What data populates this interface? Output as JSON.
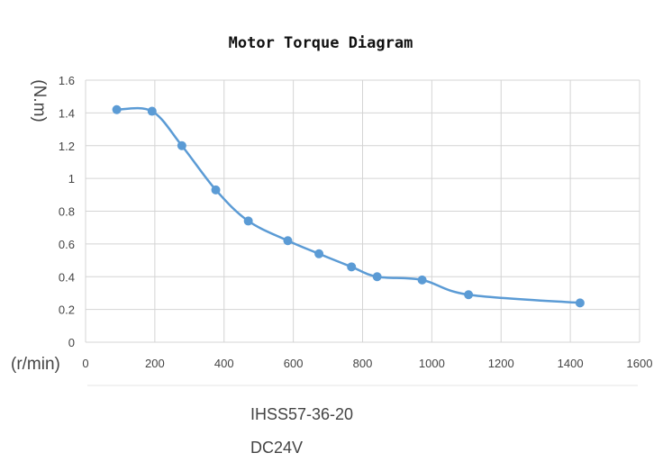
{
  "chart_data": {
    "type": "line",
    "title": "Motor Torque Diagram",
    "xlabel": "(r/min)",
    "ylabel": "(N.m)",
    "xlim": [
      0,
      1600
    ],
    "ylim": [
      0,
      1.6
    ],
    "xticks": [
      "0",
      "200",
      "400",
      "600",
      "800",
      "1000",
      "1200",
      "1400",
      "1600"
    ],
    "yticks": [
      "0",
      "0.2",
      "0.4",
      "0.6",
      "0.8",
      "1",
      "1.2",
      "1.4",
      "1.6"
    ],
    "grid": true,
    "series": [
      {
        "color": "#5b9bd5",
        "x": [
          90,
          192,
          278,
          376,
          470,
          584,
          674,
          768,
          842,
          972,
          1106,
          1428
        ],
        "y": [
          1.42,
          1.41,
          1.2,
          0.93,
          0.74,
          0.62,
          0.54,
          0.46,
          0.4,
          0.38,
          0.29,
          0.24
        ]
      }
    ],
    "annotations": [
      "IHSS57-36-20",
      "DC24V"
    ]
  }
}
